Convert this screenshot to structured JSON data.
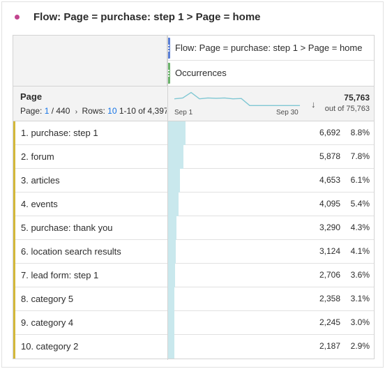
{
  "panel": {
    "title": "Flow: Page = purchase: step 1 > Page = home",
    "dot_color": "#c2458f"
  },
  "header": {
    "segment_label": "Flow: Page = purchase: step 1 > Page = home",
    "segment_color": "#5a7fd6",
    "metric_label": "Occurrences",
    "metric_color": "#6bb36b"
  },
  "dimension": {
    "title": "Page",
    "page_label": "Page:",
    "page_current": "1",
    "page_total": "/ 440",
    "rows_label": "Rows:",
    "rows_value": "10",
    "range": "1-10 of 4,397",
    "spark_start": "Sep 1",
    "spark_end": "Sep 30",
    "total": "75,763",
    "total_sub": "out of 75,763"
  },
  "sparkline": [
    0.55,
    0.6,
    0.9,
    0.55,
    0.6,
    0.58,
    0.6,
    0.55,
    0.57,
    0.18,
    0.18,
    0.18,
    0.18,
    0.18,
    0.18,
    0.18
  ],
  "rows": [
    {
      "label": "1.  purchase: step 1",
      "value": "6,692",
      "pct": "8.8%",
      "share": 0.088
    },
    {
      "label": "2.  forum",
      "value": "5,878",
      "pct": "7.8%",
      "share": 0.078
    },
    {
      "label": "3.  articles",
      "value": "4,653",
      "pct": "6.1%",
      "share": 0.061
    },
    {
      "label": "4.  events",
      "value": "4,095",
      "pct": "5.4%",
      "share": 0.054
    },
    {
      "label": "5.  purchase: thank you",
      "value": "3,290",
      "pct": "4.3%",
      "share": 0.043
    },
    {
      "label": "6.  location search results",
      "value": "3,124",
      "pct": "4.1%",
      "share": 0.041
    },
    {
      "label": "7.  lead form: step 1",
      "value": "2,706",
      "pct": "3.6%",
      "share": 0.036
    },
    {
      "label": "8.  category 5",
      "value": "2,358",
      "pct": "3.1%",
      "share": 0.031
    },
    {
      "label": "9.  category 4",
      "value": "2,245",
      "pct": "3.0%",
      "share": 0.03
    },
    {
      "label": "10.  category 2",
      "value": "2,187",
      "pct": "2.9%",
      "share": 0.029
    }
  ]
}
